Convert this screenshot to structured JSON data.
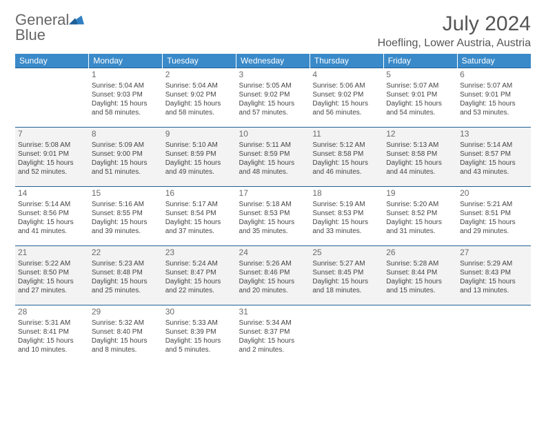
{
  "brand": {
    "text1": "General",
    "text2": "Blue"
  },
  "title": "July 2024",
  "location": "Hoefling, Lower Austria, Austria",
  "colors": {
    "header_bg": "#3a8ac9",
    "rule": "#1f5f95",
    "stripe": "#f3f3f3",
    "text": "#444444",
    "title": "#555555"
  },
  "weekdays": [
    "Sunday",
    "Monday",
    "Tuesday",
    "Wednesday",
    "Thursday",
    "Friday",
    "Saturday"
  ],
  "weeks": [
    {
      "stripe": false,
      "cells": [
        null,
        {
          "n": "1",
          "sr": "5:04 AM",
          "ss": "9:03 PM",
          "d1": "Daylight: 15 hours",
          "d2": "and 58 minutes."
        },
        {
          "n": "2",
          "sr": "5:04 AM",
          "ss": "9:02 PM",
          "d1": "Daylight: 15 hours",
          "d2": "and 58 minutes."
        },
        {
          "n": "3",
          "sr": "5:05 AM",
          "ss": "9:02 PM",
          "d1": "Daylight: 15 hours",
          "d2": "and 57 minutes."
        },
        {
          "n": "4",
          "sr": "5:06 AM",
          "ss": "9:02 PM",
          "d1": "Daylight: 15 hours",
          "d2": "and 56 minutes."
        },
        {
          "n": "5",
          "sr": "5:07 AM",
          "ss": "9:01 PM",
          "d1": "Daylight: 15 hours",
          "d2": "and 54 minutes."
        },
        {
          "n": "6",
          "sr": "5:07 AM",
          "ss": "9:01 PM",
          "d1": "Daylight: 15 hours",
          "d2": "and 53 minutes."
        }
      ]
    },
    {
      "stripe": true,
      "cells": [
        {
          "n": "7",
          "sr": "5:08 AM",
          "ss": "9:01 PM",
          "d1": "Daylight: 15 hours",
          "d2": "and 52 minutes."
        },
        {
          "n": "8",
          "sr": "5:09 AM",
          "ss": "9:00 PM",
          "d1": "Daylight: 15 hours",
          "d2": "and 51 minutes."
        },
        {
          "n": "9",
          "sr": "5:10 AM",
          "ss": "8:59 PM",
          "d1": "Daylight: 15 hours",
          "d2": "and 49 minutes."
        },
        {
          "n": "10",
          "sr": "5:11 AM",
          "ss": "8:59 PM",
          "d1": "Daylight: 15 hours",
          "d2": "and 48 minutes."
        },
        {
          "n": "11",
          "sr": "5:12 AM",
          "ss": "8:58 PM",
          "d1": "Daylight: 15 hours",
          "d2": "and 46 minutes."
        },
        {
          "n": "12",
          "sr": "5:13 AM",
          "ss": "8:58 PM",
          "d1": "Daylight: 15 hours",
          "d2": "and 44 minutes."
        },
        {
          "n": "13",
          "sr": "5:14 AM",
          "ss": "8:57 PM",
          "d1": "Daylight: 15 hours",
          "d2": "and 43 minutes."
        }
      ]
    },
    {
      "stripe": false,
      "cells": [
        {
          "n": "14",
          "sr": "5:14 AM",
          "ss": "8:56 PM",
          "d1": "Daylight: 15 hours",
          "d2": "and 41 minutes."
        },
        {
          "n": "15",
          "sr": "5:16 AM",
          "ss": "8:55 PM",
          "d1": "Daylight: 15 hours",
          "d2": "and 39 minutes."
        },
        {
          "n": "16",
          "sr": "5:17 AM",
          "ss": "8:54 PM",
          "d1": "Daylight: 15 hours",
          "d2": "and 37 minutes."
        },
        {
          "n": "17",
          "sr": "5:18 AM",
          "ss": "8:53 PM",
          "d1": "Daylight: 15 hours",
          "d2": "and 35 minutes."
        },
        {
          "n": "18",
          "sr": "5:19 AM",
          "ss": "8:53 PM",
          "d1": "Daylight: 15 hours",
          "d2": "and 33 minutes."
        },
        {
          "n": "19",
          "sr": "5:20 AM",
          "ss": "8:52 PM",
          "d1": "Daylight: 15 hours",
          "d2": "and 31 minutes."
        },
        {
          "n": "20",
          "sr": "5:21 AM",
          "ss": "8:51 PM",
          "d1": "Daylight: 15 hours",
          "d2": "and 29 minutes."
        }
      ]
    },
    {
      "stripe": true,
      "cells": [
        {
          "n": "21",
          "sr": "5:22 AM",
          "ss": "8:50 PM",
          "d1": "Daylight: 15 hours",
          "d2": "and 27 minutes."
        },
        {
          "n": "22",
          "sr": "5:23 AM",
          "ss": "8:48 PM",
          "d1": "Daylight: 15 hours",
          "d2": "and 25 minutes."
        },
        {
          "n": "23",
          "sr": "5:24 AM",
          "ss": "8:47 PM",
          "d1": "Daylight: 15 hours",
          "d2": "and 22 minutes."
        },
        {
          "n": "24",
          "sr": "5:26 AM",
          "ss": "8:46 PM",
          "d1": "Daylight: 15 hours",
          "d2": "and 20 minutes."
        },
        {
          "n": "25",
          "sr": "5:27 AM",
          "ss": "8:45 PM",
          "d1": "Daylight: 15 hours",
          "d2": "and 18 minutes."
        },
        {
          "n": "26",
          "sr": "5:28 AM",
          "ss": "8:44 PM",
          "d1": "Daylight: 15 hours",
          "d2": "and 15 minutes."
        },
        {
          "n": "27",
          "sr": "5:29 AM",
          "ss": "8:43 PM",
          "d1": "Daylight: 15 hours",
          "d2": "and 13 minutes."
        }
      ]
    },
    {
      "stripe": false,
      "cells": [
        {
          "n": "28",
          "sr": "5:31 AM",
          "ss": "8:41 PM",
          "d1": "Daylight: 15 hours",
          "d2": "and 10 minutes."
        },
        {
          "n": "29",
          "sr": "5:32 AM",
          "ss": "8:40 PM",
          "d1": "Daylight: 15 hours",
          "d2": "and 8 minutes."
        },
        {
          "n": "30",
          "sr": "5:33 AM",
          "ss": "8:39 PM",
          "d1": "Daylight: 15 hours",
          "d2": "and 5 minutes."
        },
        {
          "n": "31",
          "sr": "5:34 AM",
          "ss": "8:37 PM",
          "d1": "Daylight: 15 hours",
          "d2": "and 2 minutes."
        },
        null,
        null,
        null
      ]
    }
  ]
}
